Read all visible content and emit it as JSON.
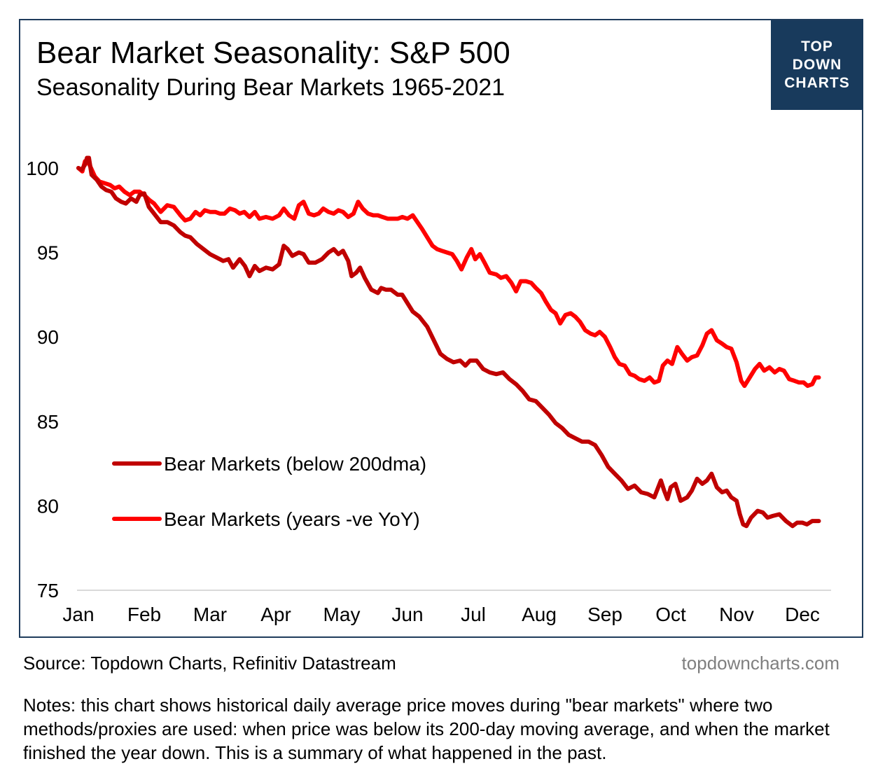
{
  "header": {
    "title": "Bear Market Seasonality: S&P 500",
    "subtitle": "Seasonality During Bear Markets 1965-2021"
  },
  "logo": {
    "line1": "TOP",
    "line2": "DOWN",
    "line3": "CHARTS"
  },
  "footer": {
    "source": "Source: Topdown Charts, Refinitiv Datastream",
    "site": "topdowncharts.com",
    "notes": "Notes: this chart shows historical daily average price moves during \"bear markets\" where two methods/proxies are used: when price was below its 200-day moving average, and when the market finished the year down.  This is a summary of what happened in the past."
  },
  "colors": {
    "frame": "#1f3c5c",
    "logo_bg": "#183a5c",
    "series1": "#c00000",
    "series2": "#ff0000",
    "axis": "#d9d9d9",
    "site_text": "#7f7f7f"
  },
  "chart_data": {
    "type": "line",
    "ylim": [
      75,
      100
    ],
    "yticks": [
      100,
      95,
      90,
      85,
      80,
      75
    ],
    "xticks": [
      "Jan",
      "Feb",
      "Mar",
      "Apr",
      "May",
      "Jun",
      "Jul",
      "Aug",
      "Sep",
      "Oct",
      "Nov",
      "Dec"
    ],
    "xlim": [
      0,
      11.7
    ],
    "grid": false,
    "legend_position": "lower-left",
    "series": [
      {
        "name": "Bear Markets (below 200dma)",
        "color": "#c00000",
        "points": [
          [
            0.0,
            100.0
          ],
          [
            0.05,
            99.9
          ],
          [
            0.1,
            100.2
          ],
          [
            0.13,
            100.6
          ],
          [
            0.16,
            100.6
          ],
          [
            0.2,
            99.6
          ],
          [
            0.28,
            99.3
          ],
          [
            0.35,
            98.9
          ],
          [
            0.42,
            98.7
          ],
          [
            0.5,
            98.6
          ],
          [
            0.57,
            98.2
          ],
          [
            0.65,
            98.0
          ],
          [
            0.72,
            97.9
          ],
          [
            0.8,
            98.2
          ],
          [
            0.88,
            98.0
          ],
          [
            0.93,
            98.4
          ],
          [
            1.0,
            98.5
          ],
          [
            1.07,
            97.7
          ],
          [
            1.15,
            97.3
          ],
          [
            1.25,
            96.8
          ],
          [
            1.35,
            96.8
          ],
          [
            1.45,
            96.6
          ],
          [
            1.55,
            96.2
          ],
          [
            1.62,
            96.0
          ],
          [
            1.7,
            95.9
          ],
          [
            1.8,
            95.5
          ],
          [
            1.9,
            95.2
          ],
          [
            2.0,
            94.9
          ],
          [
            2.1,
            94.7
          ],
          [
            2.2,
            94.5
          ],
          [
            2.28,
            94.6
          ],
          [
            2.35,
            94.1
          ],
          [
            2.45,
            94.6
          ],
          [
            2.53,
            94.2
          ],
          [
            2.6,
            93.6
          ],
          [
            2.68,
            94.2
          ],
          [
            2.75,
            93.9
          ],
          [
            2.85,
            94.1
          ],
          [
            2.95,
            94.0
          ],
          [
            3.05,
            94.3
          ],
          [
            3.12,
            95.4
          ],
          [
            3.18,
            95.2
          ],
          [
            3.25,
            94.8
          ],
          [
            3.35,
            95.0
          ],
          [
            3.42,
            94.9
          ],
          [
            3.5,
            94.4
          ],
          [
            3.6,
            94.4
          ],
          [
            3.7,
            94.6
          ],
          [
            3.8,
            95.0
          ],
          [
            3.88,
            95.2
          ],
          [
            3.95,
            94.9
          ],
          [
            4.02,
            95.1
          ],
          [
            4.1,
            94.5
          ],
          [
            4.15,
            93.6
          ],
          [
            4.22,
            93.8
          ],
          [
            4.28,
            94.1
          ],
          [
            4.35,
            93.5
          ],
          [
            4.45,
            92.8
          ],
          [
            4.55,
            92.6
          ],
          [
            4.6,
            92.9
          ],
          [
            4.67,
            92.8
          ],
          [
            4.75,
            92.8
          ],
          [
            4.85,
            92.5
          ],
          [
            4.92,
            92.5
          ],
          [
            5.0,
            92.0
          ],
          [
            5.08,
            91.5
          ],
          [
            5.18,
            91.2
          ],
          [
            5.3,
            90.6
          ],
          [
            5.4,
            89.8
          ],
          [
            5.5,
            89.0
          ],
          [
            5.6,
            88.7
          ],
          [
            5.7,
            88.5
          ],
          [
            5.8,
            88.6
          ],
          [
            5.88,
            88.3
          ],
          [
            5.95,
            88.6
          ],
          [
            6.05,
            88.6
          ],
          [
            6.15,
            88.1
          ],
          [
            6.25,
            87.9
          ],
          [
            6.35,
            87.8
          ],
          [
            6.45,
            87.9
          ],
          [
            6.55,
            87.5
          ],
          [
            6.65,
            87.2
          ],
          [
            6.75,
            86.8
          ],
          [
            6.85,
            86.3
          ],
          [
            6.95,
            86.2
          ],
          [
            7.05,
            85.8
          ],
          [
            7.15,
            85.4
          ],
          [
            7.25,
            84.9
          ],
          [
            7.35,
            84.6
          ],
          [
            7.45,
            84.2
          ],
          [
            7.55,
            84.0
          ],
          [
            7.65,
            83.8
          ],
          [
            7.75,
            83.8
          ],
          [
            7.85,
            83.6
          ],
          [
            7.95,
            83.0
          ],
          [
            8.05,
            82.3
          ],
          [
            8.15,
            81.9
          ],
          [
            8.25,
            81.5
          ],
          [
            8.35,
            81.0
          ],
          [
            8.45,
            81.2
          ],
          [
            8.55,
            80.8
          ],
          [
            8.65,
            80.7
          ],
          [
            8.75,
            80.5
          ],
          [
            8.85,
            81.5
          ],
          [
            8.9,
            80.9
          ],
          [
            8.95,
            80.4
          ],
          [
            9.0,
            81.1
          ],
          [
            9.07,
            81.3
          ],
          [
            9.15,
            80.3
          ],
          [
            9.25,
            80.5
          ],
          [
            9.32,
            80.9
          ],
          [
            9.4,
            81.6
          ],
          [
            9.48,
            81.3
          ],
          [
            9.55,
            81.5
          ],
          [
            9.62,
            81.9
          ],
          [
            9.7,
            81.1
          ],
          [
            9.78,
            80.8
          ],
          [
            9.85,
            80.9
          ],
          [
            9.92,
            80.5
          ],
          [
            10.0,
            80.3
          ],
          [
            10.05,
            79.5
          ],
          [
            10.1,
            78.9
          ],
          [
            10.15,
            78.8
          ],
          [
            10.22,
            79.3
          ],
          [
            10.32,
            79.7
          ],
          [
            10.4,
            79.6
          ],
          [
            10.47,
            79.3
          ],
          [
            10.55,
            79.4
          ],
          [
            10.65,
            79.5
          ],
          [
            10.75,
            79.1
          ],
          [
            10.85,
            78.8
          ],
          [
            10.92,
            79.0
          ],
          [
            11.0,
            79.0
          ],
          [
            11.07,
            78.9
          ],
          [
            11.15,
            79.1
          ],
          [
            11.25,
            79.1
          ]
        ]
      },
      {
        "name": "Bear Markets (years -ve YoY)",
        "color": "#ff0000",
        "points": [
          [
            0.0,
            100.0
          ],
          [
            0.06,
            99.8
          ],
          [
            0.1,
            100.4
          ],
          [
            0.14,
            100.4
          ],
          [
            0.18,
            100.1
          ],
          [
            0.25,
            99.5
          ],
          [
            0.32,
            99.2
          ],
          [
            0.4,
            99.1
          ],
          [
            0.48,
            99.0
          ],
          [
            0.55,
            98.8
          ],
          [
            0.62,
            98.9
          ],
          [
            0.7,
            98.6
          ],
          [
            0.78,
            98.4
          ],
          [
            0.85,
            98.6
          ],
          [
            0.93,
            98.6
          ],
          [
            1.0,
            98.4
          ],
          [
            1.08,
            98.1
          ],
          [
            1.15,
            97.9
          ],
          [
            1.25,
            97.4
          ],
          [
            1.35,
            97.8
          ],
          [
            1.45,
            97.7
          ],
          [
            1.55,
            97.2
          ],
          [
            1.62,
            96.9
          ],
          [
            1.7,
            97.0
          ],
          [
            1.78,
            97.4
          ],
          [
            1.85,
            97.2
          ],
          [
            1.92,
            97.5
          ],
          [
            2.0,
            97.4
          ],
          [
            2.08,
            97.4
          ],
          [
            2.15,
            97.3
          ],
          [
            2.22,
            97.3
          ],
          [
            2.3,
            97.6
          ],
          [
            2.38,
            97.5
          ],
          [
            2.45,
            97.3
          ],
          [
            2.52,
            97.4
          ],
          [
            2.6,
            97.1
          ],
          [
            2.68,
            97.4
          ],
          [
            2.75,
            97.0
          ],
          [
            2.85,
            97.1
          ],
          [
            2.95,
            97.0
          ],
          [
            3.05,
            97.2
          ],
          [
            3.12,
            97.6
          ],
          [
            3.2,
            97.2
          ],
          [
            3.28,
            97.0
          ],
          [
            3.35,
            97.8
          ],
          [
            3.42,
            98.0
          ],
          [
            3.5,
            97.3
          ],
          [
            3.58,
            97.2
          ],
          [
            3.65,
            97.3
          ],
          [
            3.72,
            97.6
          ],
          [
            3.8,
            97.4
          ],
          [
            3.88,
            97.3
          ],
          [
            3.95,
            97.5
          ],
          [
            4.02,
            97.4
          ],
          [
            4.1,
            97.1
          ],
          [
            4.18,
            97.3
          ],
          [
            4.25,
            98.0
          ],
          [
            4.32,
            97.6
          ],
          [
            4.4,
            97.3
          ],
          [
            4.48,
            97.2
          ],
          [
            4.55,
            97.2
          ],
          [
            4.62,
            97.1
          ],
          [
            4.7,
            97.0
          ],
          [
            4.78,
            97.0
          ],
          [
            4.85,
            97.0
          ],
          [
            4.92,
            97.1
          ],
          [
            5.0,
            97.0
          ],
          [
            5.08,
            97.2
          ],
          [
            5.15,
            96.8
          ],
          [
            5.22,
            96.4
          ],
          [
            5.3,
            95.9
          ],
          [
            5.38,
            95.4
          ],
          [
            5.45,
            95.2
          ],
          [
            5.52,
            95.1
          ],
          [
            5.6,
            95.0
          ],
          [
            5.68,
            94.9
          ],
          [
            5.75,
            94.5
          ],
          [
            5.82,
            94.0
          ],
          [
            5.9,
            94.7
          ],
          [
            5.97,
            95.2
          ],
          [
            6.03,
            94.6
          ],
          [
            6.1,
            94.9
          ],
          [
            6.17,
            94.4
          ],
          [
            6.25,
            93.8
          ],
          [
            6.35,
            93.7
          ],
          [
            6.42,
            93.5
          ],
          [
            6.5,
            93.6
          ],
          [
            6.58,
            93.2
          ],
          [
            6.65,
            92.7
          ],
          [
            6.72,
            93.3
          ],
          [
            6.8,
            93.3
          ],
          [
            6.88,
            93.2
          ],
          [
            6.95,
            92.9
          ],
          [
            7.03,
            92.6
          ],
          [
            7.1,
            92.1
          ],
          [
            7.18,
            91.6
          ],
          [
            7.25,
            91.4
          ],
          [
            7.32,
            90.8
          ],
          [
            7.4,
            91.3
          ],
          [
            7.48,
            91.4
          ],
          [
            7.55,
            91.2
          ],
          [
            7.62,
            90.9
          ],
          [
            7.7,
            90.4
          ],
          [
            7.78,
            90.2
          ],
          [
            7.85,
            90.1
          ],
          [
            7.92,
            90.3
          ],
          [
            8.0,
            90.0
          ],
          [
            8.08,
            89.4
          ],
          [
            8.15,
            88.8
          ],
          [
            8.22,
            88.4
          ],
          [
            8.3,
            88.3
          ],
          [
            8.38,
            87.8
          ],
          [
            8.45,
            87.7
          ],
          [
            8.52,
            87.5
          ],
          [
            8.6,
            87.4
          ],
          [
            8.68,
            87.6
          ],
          [
            8.75,
            87.3
          ],
          [
            8.82,
            87.4
          ],
          [
            8.88,
            88.3
          ],
          [
            8.95,
            88.6
          ],
          [
            9.02,
            88.4
          ],
          [
            9.1,
            89.4
          ],
          [
            9.17,
            89.0
          ],
          [
            9.25,
            88.6
          ],
          [
            9.32,
            88.8
          ],
          [
            9.4,
            88.9
          ],
          [
            9.48,
            89.5
          ],
          [
            9.55,
            90.2
          ],
          [
            9.62,
            90.4
          ],
          [
            9.7,
            89.8
          ],
          [
            9.78,
            89.6
          ],
          [
            9.85,
            89.4
          ],
          [
            9.92,
            89.3
          ],
          [
            10.0,
            88.5
          ],
          [
            10.07,
            87.4
          ],
          [
            10.12,
            87.1
          ],
          [
            10.2,
            87.6
          ],
          [
            10.28,
            88.1
          ],
          [
            10.35,
            88.4
          ],
          [
            10.42,
            88.0
          ],
          [
            10.5,
            88.2
          ],
          [
            10.58,
            87.9
          ],
          [
            10.65,
            88.1
          ],
          [
            10.72,
            88.0
          ],
          [
            10.8,
            87.5
          ],
          [
            10.88,
            87.4
          ],
          [
            10.95,
            87.3
          ],
          [
            11.02,
            87.3
          ],
          [
            11.08,
            87.1
          ],
          [
            11.15,
            87.2
          ],
          [
            11.2,
            87.6
          ],
          [
            11.25,
            87.6
          ]
        ]
      }
    ]
  }
}
